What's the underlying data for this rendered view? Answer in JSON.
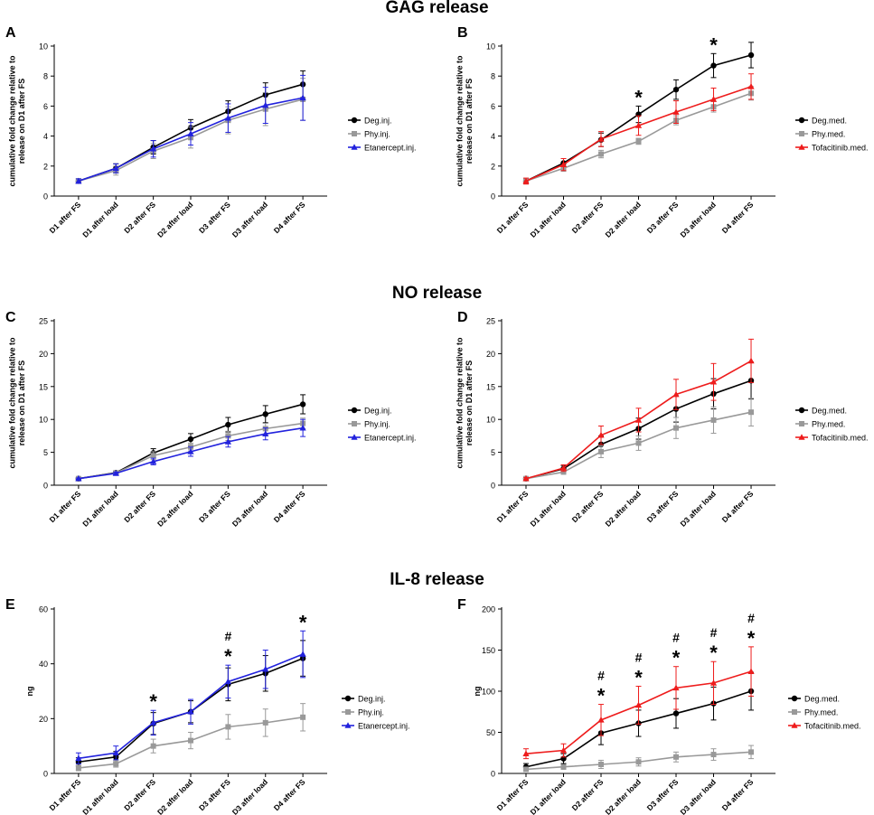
{
  "sections": [
    {
      "title": "GAG release"
    },
    {
      "title": "NO release"
    },
    {
      "title": "IL-8 release"
    }
  ],
  "colors": {
    "black": "#000000",
    "gray": "#999999",
    "blue": "#2222dd",
    "red": "#ee1c1c"
  },
  "chart_data": [
    {
      "panel": "A",
      "type": "line",
      "section": "GAG release",
      "categories": [
        "D1 after FS",
        "D1 after load",
        "D2 after FS",
        "D2 after load",
        "D3 after FS",
        "D3 after load",
        "D4 after FS"
      ],
      "ylabel": "cumulative fold change relative to release on D1 after FS",
      "ylim": [
        0,
        10
      ],
      "yticks": [
        0,
        2,
        4,
        6,
        8,
        10
      ],
      "series": [
        {
          "name": "Deg.inj.",
          "color": "black",
          "marker": "circle",
          "values": [
            1.0,
            1.85,
            3.25,
            4.55,
            5.65,
            6.75,
            7.45
          ],
          "errors": [
            0.15,
            0.3,
            0.45,
            0.55,
            0.7,
            0.8,
            0.9
          ]
        },
        {
          "name": "Phy.inj.",
          "color": "gray",
          "marker": "square",
          "values": [
            1.0,
            1.7,
            3.0,
            3.9,
            5.05,
            5.8,
            6.45
          ],
          "errors": [
            0.15,
            0.3,
            0.5,
            0.7,
            0.9,
            1.1,
            1.4
          ]
        },
        {
          "name": "Etanercept.inj.",
          "color": "blue",
          "marker": "triangle",
          "values": [
            1.0,
            1.85,
            3.15,
            4.15,
            5.2,
            6.05,
            6.55
          ],
          "errors": [
            0.15,
            0.3,
            0.55,
            0.75,
            0.95,
            1.2,
            1.5
          ]
        }
      ],
      "annotations": []
    },
    {
      "panel": "B",
      "type": "line",
      "section": "GAG release",
      "categories": [
        "D1 after FS",
        "D1 after load",
        "D2 after FS",
        "D2 after load",
        "D3 after FS",
        "D3 after load",
        "D4 after FS"
      ],
      "ylabel": "cumulative fold change relative to release on D1 after FS",
      "ylim": [
        0,
        10
      ],
      "yticks": [
        0,
        2,
        4,
        6,
        8,
        10
      ],
      "series": [
        {
          "name": "Deg.med.",
          "color": "black",
          "marker": "circle",
          "values": [
            1.0,
            2.2,
            3.75,
            5.45,
            7.1,
            8.7,
            9.4
          ],
          "errors": [
            0.15,
            0.3,
            0.45,
            0.55,
            0.65,
            0.8,
            0.85
          ]
        },
        {
          "name": "Phy.med.",
          "color": "gray",
          "marker": "square",
          "values": [
            1.0,
            1.85,
            2.8,
            3.65,
            5.05,
            5.95,
            6.85
          ],
          "errors": [
            0.1,
            0.2,
            0.25,
            0.2,
            0.3,
            0.35,
            0.45
          ]
        },
        {
          "name": "Tofacitinib.med.",
          "color": "red",
          "marker": "triangle",
          "values": [
            1.0,
            2.1,
            3.8,
            4.7,
            5.6,
            6.45,
            7.3
          ],
          "errors": [
            0.2,
            0.4,
            0.5,
            0.65,
            0.75,
            0.75,
            0.85
          ]
        }
      ],
      "annotations": [
        {
          "category": "D2 after load",
          "symbols": [
            "*"
          ]
        },
        {
          "category": "D3 after load",
          "symbols": [
            "*"
          ]
        }
      ]
    },
    {
      "panel": "C",
      "type": "line",
      "section": "NO release",
      "categories": [
        "D1 after FS",
        "D1 after load",
        "D2 after FS",
        "D2 after load",
        "D3 after FS",
        "D3 after load",
        "D4 after FS"
      ],
      "ylabel": "cumulative fold change relative to release on D1 after FS",
      "ylim": [
        0,
        25
      ],
      "yticks": [
        0,
        5,
        10,
        15,
        20,
        25
      ],
      "series": [
        {
          "name": "Deg.inj.",
          "color": "black",
          "marker": "circle",
          "values": [
            1.0,
            1.9,
            4.9,
            7.0,
            9.2,
            10.8,
            12.3
          ],
          "errors": [
            0.15,
            0.3,
            0.65,
            0.85,
            1.1,
            1.3,
            1.45
          ]
        },
        {
          "name": "Phy.inj.",
          "color": "gray",
          "marker": "square",
          "values": [
            1.0,
            1.85,
            4.5,
            5.8,
            7.5,
            8.6,
            9.4
          ],
          "errors": [
            0.15,
            0.3,
            0.6,
            0.6,
            0.7,
            0.8,
            0.8
          ]
        },
        {
          "name": "Etanercept.inj.",
          "color": "blue",
          "marker": "triangle",
          "values": [
            1.0,
            1.8,
            3.6,
            5.1,
            6.6,
            7.8,
            8.7
          ],
          "errors": [
            0.1,
            0.2,
            0.5,
            0.7,
            0.8,
            0.9,
            1.3
          ]
        }
      ],
      "annotations": []
    },
    {
      "panel": "D",
      "type": "line",
      "section": "NO release",
      "categories": [
        "D1 after FS",
        "D1 after load",
        "D2 after FS",
        "D2 after load",
        "D3 after FS",
        "D3 after load",
        "D4 after FS"
      ],
      "ylabel": "cumulative fold change relative to release on D1 after FS",
      "ylim": [
        0,
        25
      ],
      "yticks": [
        0,
        5,
        10,
        15,
        20,
        25
      ],
      "series": [
        {
          "name": "Deg.med.",
          "color": "black",
          "marker": "circle",
          "values": [
            1.0,
            2.5,
            6.2,
            8.6,
            11.6,
            13.9,
            15.9
          ],
          "errors": [
            0.2,
            0.5,
            1.3,
            1.6,
            2.0,
            2.3,
            2.8
          ]
        },
        {
          "name": "Phy.med.",
          "color": "gray",
          "marker": "square",
          "values": [
            1.0,
            2.0,
            5.1,
            6.4,
            8.7,
            9.9,
            11.1
          ],
          "errors": [
            0.1,
            0.3,
            0.9,
            1.1,
            1.6,
            2.0,
            2.1
          ]
        },
        {
          "name": "Tofacitinib.med.",
          "color": "red",
          "marker": "triangle",
          "values": [
            1.0,
            2.6,
            7.6,
            9.9,
            13.8,
            15.7,
            18.9
          ],
          "errors": [
            0.15,
            0.5,
            1.4,
            1.8,
            2.3,
            2.8,
            3.3
          ]
        }
      ],
      "annotations": []
    },
    {
      "panel": "E",
      "type": "line",
      "section": "IL-8 release",
      "categories": [
        "D1 after FS",
        "D1 after load",
        "D2 after FS",
        "D2 after load",
        "D3 after FS",
        "D3 after load",
        "D4 after FS"
      ],
      "ylabel": "ng",
      "ylim": [
        0,
        60
      ],
      "yticks": [
        0,
        20,
        40,
        60
      ],
      "series": [
        {
          "name": "Deg.inj.",
          "color": "black",
          "marker": "circle",
          "values": [
            4.2,
            6.0,
            18.2,
            22.5,
            32.5,
            36.5,
            42.0
          ],
          "errors": [
            1.5,
            2.0,
            4.0,
            4.0,
            6.0,
            6.5,
            6.5
          ]
        },
        {
          "name": "Phy.inj.",
          "color": "gray",
          "marker": "square",
          "values": [
            2.0,
            3.5,
            10.0,
            12.0,
            17.0,
            18.5,
            20.5
          ],
          "errors": [
            1.0,
            1.2,
            2.5,
            3.0,
            4.5,
            5.0,
            5.0
          ]
        },
        {
          "name": "Etanercept.inj.",
          "color": "blue",
          "marker": "triangle",
          "values": [
            5.5,
            7.5,
            18.5,
            22.5,
            33.5,
            38.0,
            43.5
          ],
          "errors": [
            2.0,
            2.5,
            4.5,
            4.5,
            6.0,
            7.0,
            8.5
          ]
        }
      ],
      "annotations": [
        {
          "category": "D2 after FS",
          "symbols": [
            "*"
          ]
        },
        {
          "category": "D3 after FS",
          "symbols": [
            "#",
            "*"
          ]
        },
        {
          "category": "D4 after FS",
          "symbols": [
            "*"
          ]
        }
      ]
    },
    {
      "panel": "F",
      "type": "line",
      "section": "IL-8 release",
      "categories": [
        "D1 after FS",
        "D1 after load",
        "D2 after FS",
        "D2 after load",
        "D3 after FS",
        "D3 after load",
        "D4 after FS"
      ],
      "ylabel": "ng",
      "ylim": [
        0,
        200
      ],
      "yticks": [
        0,
        50,
        100,
        150,
        200
      ],
      "series": [
        {
          "name": "Deg.med.",
          "color": "black",
          "marker": "circle",
          "values": [
            8,
            18,
            49,
            61,
            73,
            85,
            100
          ],
          "errors": [
            4,
            6,
            14,
            16,
            18,
            20,
            23
          ]
        },
        {
          "name": "Phy.med.",
          "color": "gray",
          "marker": "square",
          "values": [
            5,
            8,
            11,
            14,
            20,
            23,
            26
          ],
          "errors": [
            2,
            3,
            5,
            5,
            6,
            7,
            8
          ]
        },
        {
          "name": "Tofacitinib.med.",
          "color": "red",
          "marker": "triangle",
          "values": [
            24,
            28,
            65,
            83,
            104,
            110,
            124
          ],
          "errors": [
            6,
            8,
            19,
            23,
            26,
            26,
            30
          ]
        }
      ],
      "annotations": [
        {
          "category": "D2 after FS",
          "symbols": [
            "#",
            "*"
          ]
        },
        {
          "category": "D2 after load",
          "symbols": [
            "#",
            "*"
          ]
        },
        {
          "category": "D3 after FS",
          "symbols": [
            "#",
            "*"
          ]
        },
        {
          "category": "D3 after load",
          "symbols": [
            "#",
            "*"
          ]
        },
        {
          "category": "D4 after FS",
          "symbols": [
            "#",
            "*"
          ]
        }
      ]
    }
  ]
}
